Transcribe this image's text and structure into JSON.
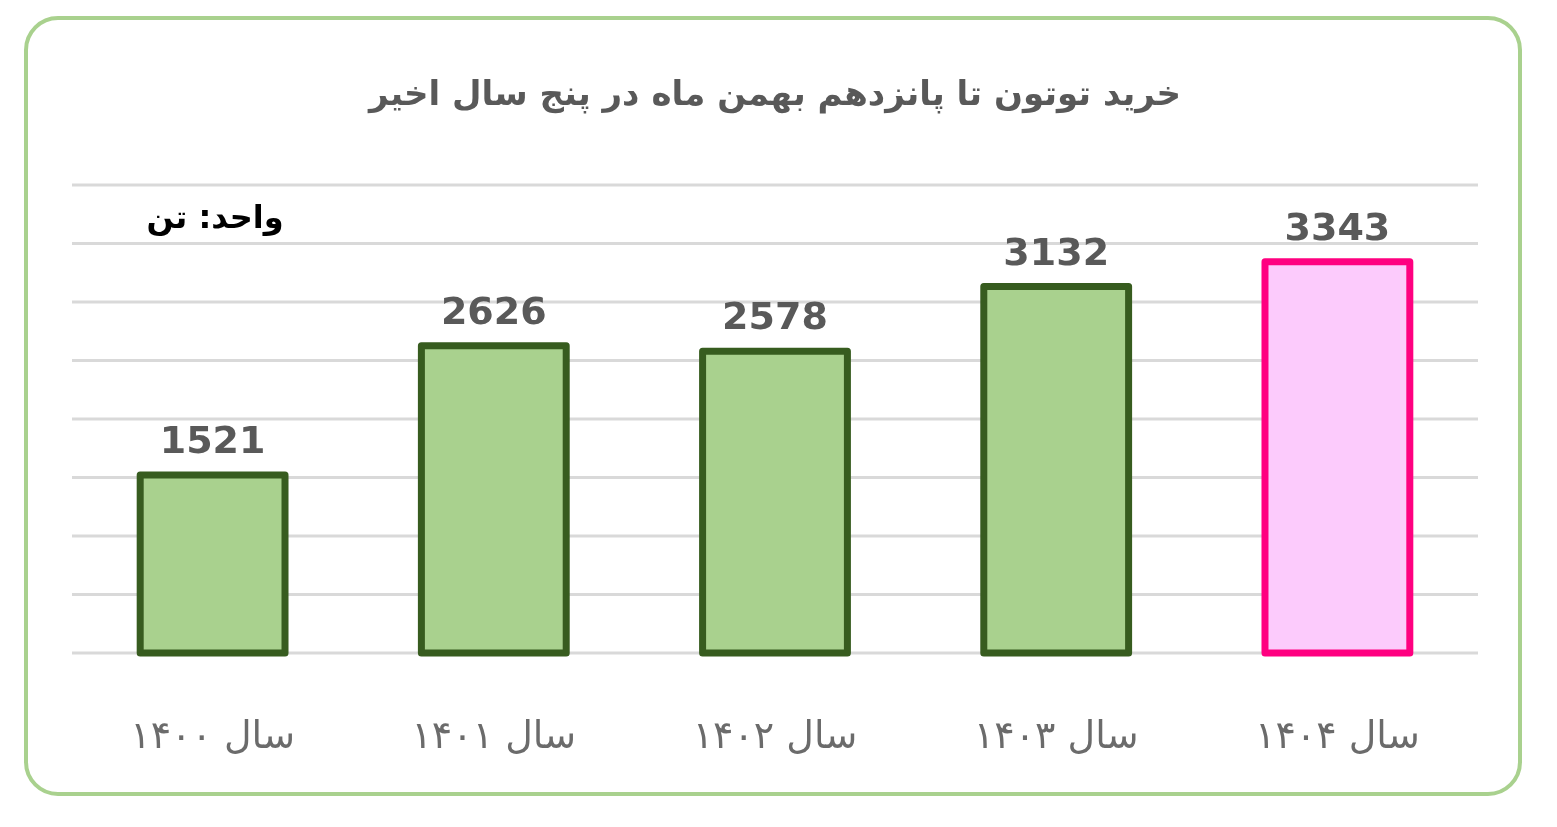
{
  "chart_data": {
    "type": "bar",
    "title": "خرید توتون تا پانزدهم بهمن ماه در پنج سال اخیر",
    "annotations": [
      "واحد: تن"
    ],
    "categories": [
      "سال ۱۴۰۰",
      "سال ۱۴۰۱",
      "سال ۱۴۰۲",
      "سال ۱۴۰۳",
      "سال ۱۴۰۴"
    ],
    "values": [
      1521,
      2626,
      2578,
      3132,
      3343
    ],
    "colors": [
      "#a9d18e",
      "#a9d18e",
      "#a9d18e",
      "#a9d18e",
      "#fccbfc"
    ],
    "data_labels": true,
    "ylim": [
      0,
      4000
    ],
    "yticks": [
      {
        "value": 0,
        "label": null
      },
      {
        "value": 500,
        "label": null
      },
      {
        "value": 1000,
        "label": null
      },
      {
        "value": 1500,
        "label": null
      },
      {
        "value": 2000,
        "label": null
      },
      {
        "value": 2500,
        "label": null
      },
      {
        "value": 3000,
        "label": null
      },
      {
        "value": 3500,
        "label": null
      },
      {
        "value": 4000,
        "label": null
      }
    ],
    "tick_labels": "x",
    "grid": "y"
  }
}
